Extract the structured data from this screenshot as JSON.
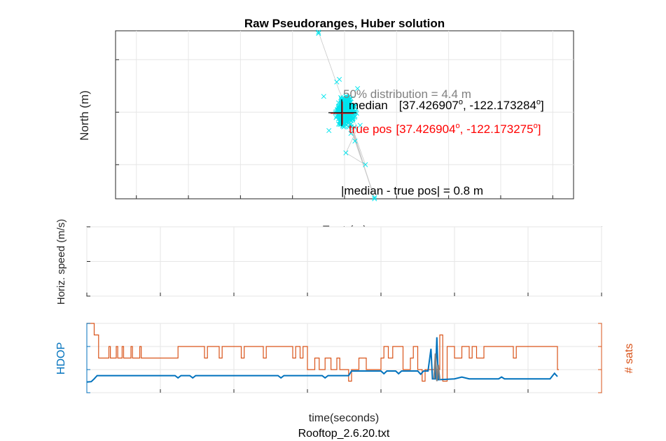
{
  "chart_data": [
    {
      "type": "scatter",
      "title": "Raw Pseudoranges, Huber solution",
      "xlabel": "East (m)",
      "ylabel": "North (m)",
      "xlim": [
        -88,
        88
      ],
      "ylim": [
        -33,
        31
      ],
      "xticks": [
        "-80",
        "-60",
        "-40",
        "-20",
        "0",
        "20",
        "40",
        "60",
        "80"
      ],
      "yticks": [
        "20",
        "0",
        "-20"
      ],
      "grid": true,
      "annotations": {
        "distribution": "50% distribution = 4.4 m",
        "median_label": "median",
        "median_lat": "[37.426907",
        "median_lon": ", -122.173284",
        "true_label": "true pos",
        "true_lat": "[37.426904",
        "true_lon": ", -122.173275",
        "degree": "o",
        "close": "]",
        "error": "|median - true pos| = 0.8 m"
      },
      "colors": {
        "points": "#00e5ee",
        "track": "#c8c8c8",
        "median_text": "#000000",
        "true_text": "#ff0000",
        "distribution_text": "#808080"
      }
    },
    {
      "type": "line",
      "ylabel": "Horiz. speed (m/s)",
      "xlim": [
        0,
        350
      ],
      "ylim": [
        0,
        1
      ],
      "xticks": [
        "0",
        "50",
        "100",
        "150",
        "200",
        "250",
        "300",
        "350"
      ],
      "yticks": [
        "1",
        "0.5",
        "0"
      ],
      "grid": true
    },
    {
      "type": "line",
      "xlabel": "time(seconds)",
      "caption": "Rooftop_2.6.20.txt",
      "xlim": [
        0,
        350
      ],
      "xticks": [
        "0",
        "50",
        "100",
        "150",
        "200",
        "250",
        "300",
        "350"
      ],
      "series": [
        {
          "name": "HDOP",
          "axis": "left",
          "ylim": [
            0.5,
            2
          ],
          "yticks": [
            "2",
            "1.5",
            "1",
            "0.5"
          ],
          "color": "#0072bd",
          "points": [
            [
              0,
              0.73
            ],
            [
              3,
              0.74
            ],
            [
              5,
              0.8
            ],
            [
              7,
              0.87
            ],
            [
              60,
              0.87
            ],
            [
              62,
              0.82
            ],
            [
              64,
              0.87
            ],
            [
              70,
              0.87
            ],
            [
              72,
              0.82
            ],
            [
              74,
              0.87
            ],
            [
              130,
              0.87
            ],
            [
              132,
              0.82
            ],
            [
              134,
              0.87
            ],
            [
              160,
              0.87
            ],
            [
              162,
              0.82
            ],
            [
              164,
              0.87
            ],
            [
              178,
              0.87
            ],
            [
              180,
              0.97
            ],
            [
              200,
              0.97
            ],
            [
              202,
              0.91
            ],
            [
              204,
              0.97
            ],
            [
              210,
              0.97
            ],
            [
              212,
              0.91
            ],
            [
              214,
              0.97
            ],
            [
              225,
              0.97
            ],
            [
              227,
              0.9
            ],
            [
              229,
              0.97
            ],
            [
              232,
              0.97
            ],
            [
              234,
              1.45
            ],
            [
              235,
              0.8
            ],
            [
              237,
              0.8
            ],
            [
              238,
              1.7
            ],
            [
              239,
              0.78
            ],
            [
              250,
              0.8
            ],
            [
              255,
              0.84
            ],
            [
              260,
              0.8
            ],
            [
              280,
              0.8
            ],
            [
              282,
              0.84
            ],
            [
              284,
              0.8
            ],
            [
              315,
              0.8
            ],
            [
              318,
              0.92
            ],
            [
              320,
              0.85
            ]
          ]
        },
        {
          "name": "# sats",
          "axis": "right",
          "ylim": [
            6,
            12
          ],
          "yticks": [
            "12",
            "10",
            "8",
            "6"
          ],
          "color": "#d95319",
          "steps": [
            [
              0,
              12
            ],
            [
              5,
              11
            ],
            [
              8,
              9
            ],
            [
              15,
              10
            ],
            [
              16,
              9
            ],
            [
              20,
              10
            ],
            [
              21,
              9
            ],
            [
              24,
              10
            ],
            [
              25,
              9
            ],
            [
              30,
              10
            ],
            [
              31,
              9
            ],
            [
              36,
              10
            ],
            [
              37,
              9
            ],
            [
              62,
              10
            ],
            [
              80,
              9
            ],
            [
              82,
              10
            ],
            [
              90,
              9
            ],
            [
              92,
              10
            ],
            [
              105,
              9
            ],
            [
              107,
              10
            ],
            [
              120,
              9
            ],
            [
              122,
              10
            ],
            [
              140,
              9
            ],
            [
              142,
              10
            ],
            [
              145,
              9
            ],
            [
              147,
              10
            ],
            [
              150,
              8
            ],
            [
              155,
              9
            ],
            [
              158,
              8
            ],
            [
              162,
              9
            ],
            [
              166,
              8
            ],
            [
              170,
              9
            ],
            [
              172,
              8
            ],
            [
              178,
              7
            ],
            [
              180,
              8
            ],
            [
              185,
              9
            ],
            [
              190,
              8
            ],
            [
              200,
              9
            ],
            [
              202,
              10
            ],
            [
              205,
              9
            ],
            [
              208,
              10
            ],
            [
              215,
              8
            ],
            [
              220,
              9
            ],
            [
              222,
              10
            ],
            [
              225,
              8
            ],
            [
              228,
              7
            ],
            [
              230,
              8
            ],
            [
              240,
              11
            ],
            [
              242,
              7
            ],
            [
              245,
              10
            ],
            [
              250,
              9
            ],
            [
              255,
              10
            ],
            [
              260,
              9
            ],
            [
              262,
              10
            ],
            [
              265,
              9
            ],
            [
              270,
              10
            ],
            [
              280,
              10
            ],
            [
              290,
              9
            ],
            [
              292,
              10
            ],
            [
              320,
              8
            ]
          ]
        },
        {
          "name": "",
          "axis": "left",
          "color": "#808080",
          "points": [
            [
              236,
              0.8
            ],
            [
              237,
              1.35
            ],
            [
              238,
              0.75
            ],
            [
              239,
              1.1
            ],
            [
              240,
              0.78
            ]
          ]
        }
      ]
    }
  ]
}
